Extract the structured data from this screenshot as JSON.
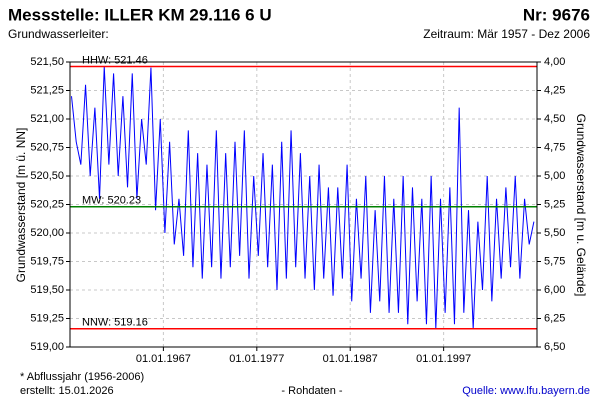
{
  "chart_data": {
    "type": "line",
    "title": "Messstelle: ILLER KM 29.116 6 U",
    "number": "Nr: 9676",
    "subtitle": "Grundwasserleiter:",
    "period": "Zeitraum: Mär 1957 - Dez 2006",
    "y_label": "Grundwasserstand [m ü. NN]",
    "y2_label": "Grundwasserstand [m u. Gelände]",
    "footnote": "* Abflussjahr (1956-2006)",
    "created": "erstellt:  15.01.2026",
    "data_kind": "- Rohdaten -",
    "source": "Quelle: www.lfu.bayern.de",
    "grid": true,
    "xlim": [
      "1957-01-01",
      "2006-12-31"
    ],
    "xticks": [
      {
        "value": "1967-01-01",
        "label": "01.01.1967"
      },
      {
        "value": "1977-01-01",
        "label": "01.01.1977"
      },
      {
        "value": "1987-01-01",
        "label": "01.01.1987"
      },
      {
        "value": "1997-01-01",
        "label": "01.01.1997"
      }
    ],
    "ylim": [
      519.0,
      521.5
    ],
    "yticks": [
      {
        "value": 519.0,
        "label": "519,00"
      },
      {
        "value": 519.25,
        "label": "519,25"
      },
      {
        "value": 519.5,
        "label": "519,50"
      },
      {
        "value": 519.75,
        "label": "519,75"
      },
      {
        "value": 520.0,
        "label": "520,00"
      },
      {
        "value": 520.25,
        "label": "520,25"
      },
      {
        "value": 520.5,
        "label": "520,50"
      },
      {
        "value": 520.75,
        "label": "520,75"
      },
      {
        "value": 521.0,
        "label": "521,00"
      },
      {
        "value": 521.25,
        "label": "521,25"
      },
      {
        "value": 521.5,
        "label": "521,50"
      }
    ],
    "y2lim": [
      6.5,
      4.0
    ],
    "y2ticks": [
      {
        "value": 4.0,
        "label": "4,00"
      },
      {
        "value": 4.25,
        "label": "4,25"
      },
      {
        "value": 4.5,
        "label": "4,50"
      },
      {
        "value": 4.75,
        "label": "4,75"
      },
      {
        "value": 5.0,
        "label": "5,00"
      },
      {
        "value": 5.25,
        "label": "5,25"
      },
      {
        "value": 5.5,
        "label": "5,50"
      },
      {
        "value": 5.75,
        "label": "5,75"
      },
      {
        "value": 6.0,
        "label": "6,00"
      },
      {
        "value": 6.25,
        "label": "6,25"
      },
      {
        "value": 6.5,
        "label": "6,50"
      }
    ],
    "reference_lines": [
      {
        "label": "HHW: 521.46",
        "value": 521.46,
        "color": "#ff0000"
      },
      {
        "label": "MW: 520.23",
        "value": 520.23,
        "color": "#008000"
      },
      {
        "label": "NNW: 519.16",
        "value": 519.16,
        "color": "#ff0000"
      }
    ],
    "x": [
      "1957-03-01",
      "1957-09-01",
      "1958-03-01",
      "1958-09-01",
      "1959-03-01",
      "1959-09-01",
      "1960-03-01",
      "1960-09-01",
      "1961-03-01",
      "1961-09-01",
      "1962-03-01",
      "1962-09-01",
      "1963-03-01",
      "1963-09-01",
      "1964-03-01",
      "1964-09-01",
      "1965-03-01",
      "1965-09-01",
      "1966-03-01",
      "1966-09-01",
      "1967-03-01",
      "1967-09-01",
      "1968-03-01",
      "1968-09-01",
      "1969-03-01",
      "1969-09-01",
      "1970-03-01",
      "1970-09-01",
      "1971-03-01",
      "1971-09-01",
      "1972-03-01",
      "1972-09-01",
      "1973-03-01",
      "1973-09-01",
      "1974-03-01",
      "1974-09-01",
      "1975-03-01",
      "1975-09-01",
      "1976-03-01",
      "1976-09-01",
      "1977-03-01",
      "1977-09-01",
      "1978-03-01",
      "1978-09-01",
      "1979-03-01",
      "1979-09-01",
      "1980-03-01",
      "1980-09-01",
      "1981-03-01",
      "1981-09-01",
      "1982-03-01",
      "1982-09-01",
      "1983-03-01",
      "1983-09-01",
      "1984-03-01",
      "1984-09-01",
      "1985-03-01",
      "1985-09-01",
      "1986-03-01",
      "1986-09-01",
      "1987-03-01",
      "1987-09-01",
      "1988-03-01",
      "1988-09-01",
      "1989-03-01",
      "1989-09-01",
      "1990-03-01",
      "1990-09-01",
      "1991-03-01",
      "1991-09-01",
      "1992-03-01",
      "1992-09-01",
      "1993-03-01",
      "1993-09-01",
      "1994-03-01",
      "1994-09-01",
      "1995-03-01",
      "1995-09-01",
      "1996-03-01",
      "1996-09-01",
      "1997-03-01",
      "1997-09-01",
      "1998-03-01",
      "1998-09-01",
      "1999-03-01",
      "1999-09-01",
      "2000-03-01",
      "2000-09-01",
      "2001-03-01",
      "2001-09-01",
      "2002-03-01",
      "2002-09-01",
      "2003-03-01",
      "2003-09-01",
      "2004-03-01",
      "2004-09-01",
      "2005-03-01",
      "2005-09-01",
      "2006-03-01",
      "2006-09-01"
    ],
    "series": [
      {
        "color": "#0000ff",
        "values": [
          521.2,
          520.8,
          520.6,
          521.3,
          520.5,
          521.1,
          520.3,
          521.46,
          520.6,
          521.4,
          520.5,
          521.2,
          520.4,
          521.4,
          520.3,
          521.0,
          520.6,
          521.45,
          520.2,
          521.0,
          520.0,
          520.8,
          519.9,
          520.3,
          519.8,
          520.9,
          519.7,
          520.7,
          519.6,
          520.6,
          519.7,
          520.9,
          519.6,
          520.7,
          519.7,
          520.8,
          519.8,
          520.9,
          519.6,
          520.5,
          519.8,
          520.7,
          519.7,
          520.6,
          519.5,
          520.8,
          519.6,
          520.9,
          519.7,
          520.7,
          519.6,
          520.5,
          519.5,
          520.6,
          519.6,
          520.4,
          519.45,
          520.4,
          519.6,
          520.6,
          519.4,
          520.3,
          519.6,
          520.5,
          519.3,
          520.2,
          519.4,
          520.5,
          519.3,
          520.3,
          519.3,
          520.5,
          519.2,
          520.4,
          519.4,
          520.3,
          519.2,
          520.5,
          519.16,
          520.3,
          519.3,
          520.4,
          519.2,
          521.1,
          519.3,
          520.2,
          519.16,
          520.1,
          519.5,
          520.5,
          519.4,
          520.3,
          519.6,
          520.4,
          519.7,
          520.5,
          519.6,
          520.3,
          519.9,
          520.1
        ]
      }
    ]
  }
}
